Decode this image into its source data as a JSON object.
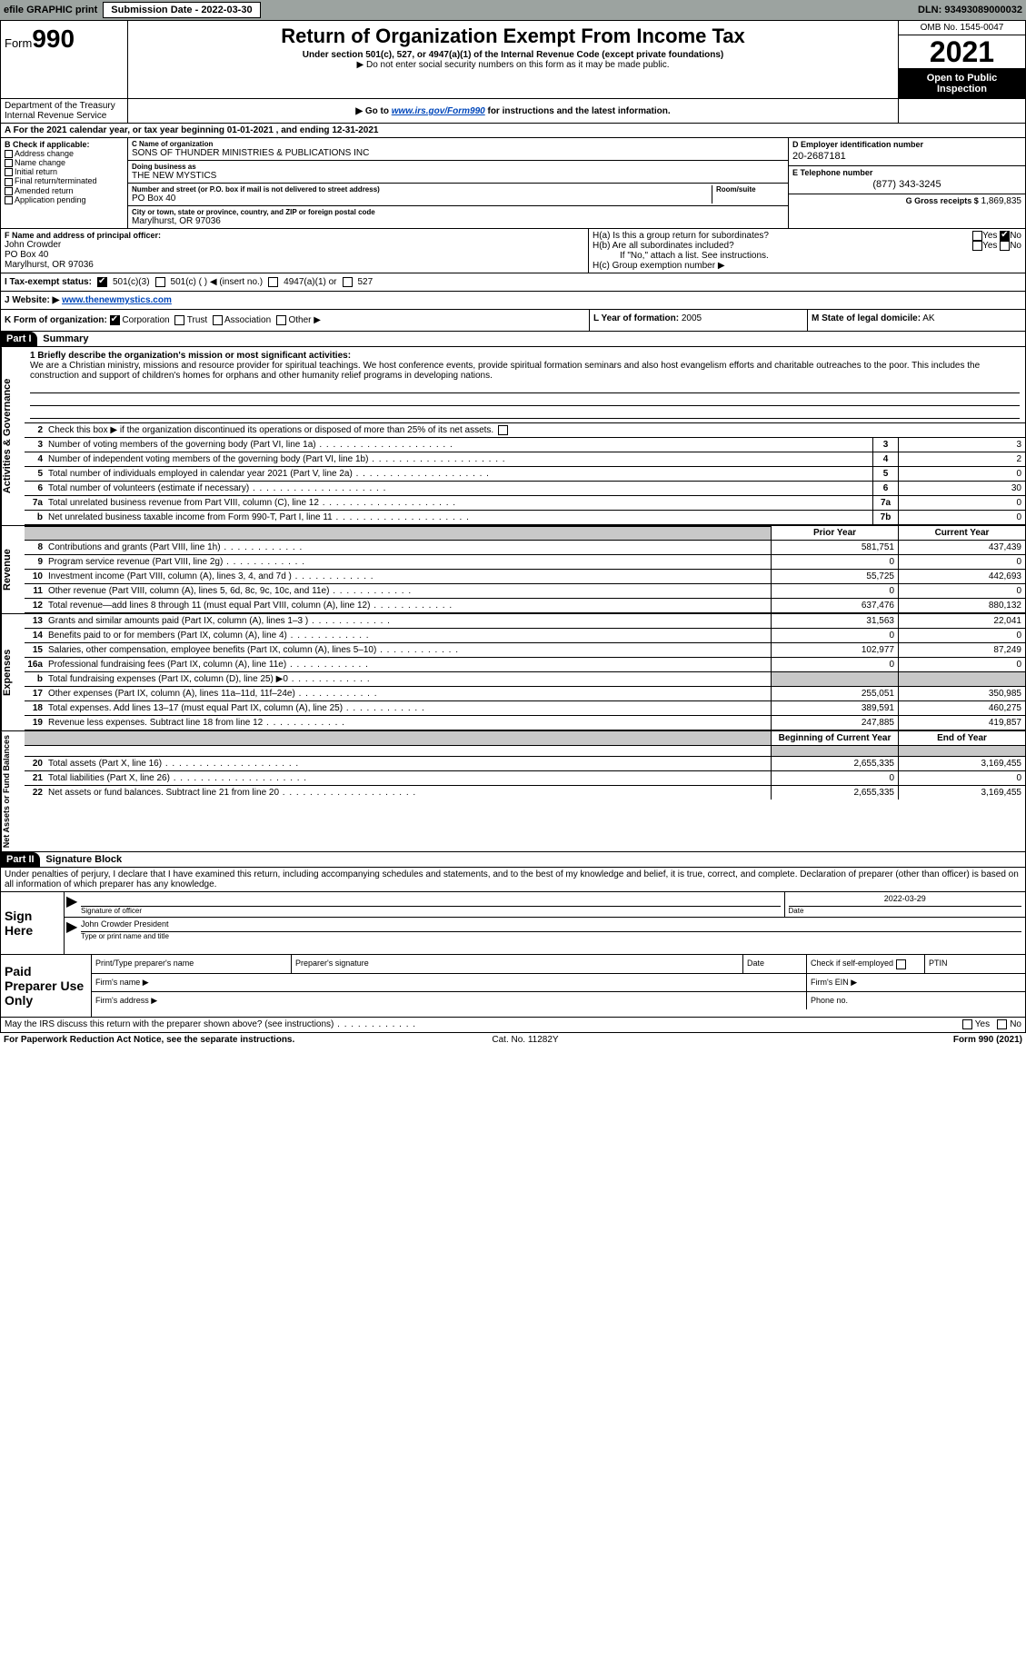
{
  "topbar": {
    "efile_label": "efile GRAPHIC print",
    "submission_label": "Submission Date - 2022-03-30",
    "dln_label": "DLN: 93493089000032"
  },
  "header": {
    "form_prefix": "Form",
    "form_number": "990",
    "title": "Return of Organization Exempt From Income Tax",
    "subtitle": "Under section 501(c), 527, or 4947(a)(1) of the Internal Revenue Code (except private foundations)",
    "note1": "▶ Do not enter social security numbers on this form as it may be made public.",
    "note2_pre": "▶ Go to ",
    "note2_link": "www.irs.gov/Form990",
    "note2_post": " for instructions and the latest information.",
    "omb": "OMB No. 1545-0047",
    "year": "2021",
    "open": "Open to Public Inspection",
    "dept": "Department of the Treasury Internal Revenue Service"
  },
  "A": {
    "text": "A For the 2021 calendar year, or tax year beginning 01-01-2021    , and ending 12-31-2021"
  },
  "B": {
    "header": "B Check if applicable:",
    "items": [
      "Address change",
      "Name change",
      "Initial return",
      "Final return/terminated",
      "Amended return",
      "Application pending"
    ]
  },
  "C": {
    "name_label": "C Name of organization",
    "name": "SONS OF THUNDER MINISTRIES & PUBLICATIONS INC",
    "dba_label": "Doing business as",
    "dba": "THE NEW MYSTICS",
    "street_label": "Number and street (or P.O. box if mail is not delivered to street address)",
    "room_label": "Room/suite",
    "street": "PO Box 40",
    "city_label": "City or town, state or province, country, and ZIP or foreign postal code",
    "city": "Marylhurst, OR  97036"
  },
  "D": {
    "label": "D Employer identification number",
    "value": "20-2687181"
  },
  "E": {
    "label": "E Telephone number",
    "value": "(877) 343-3245"
  },
  "G": {
    "label": "G Gross receipts $",
    "value": "1,869,835"
  },
  "F": {
    "label": "F Name and address of principal officer:",
    "name": "John Crowder",
    "street": "PO Box 40",
    "city": "Marylhurst, OR  97036"
  },
  "H": {
    "a": "H(a)  Is this a group return for subordinates?",
    "b": "H(b)  Are all subordinates included?",
    "b_note": "If \"No,\" attach a list. See instructions.",
    "c": "H(c)  Group exemption number ▶",
    "yes": "Yes",
    "no": "No"
  },
  "I": {
    "label": "I  Tax-exempt status:",
    "opt1": "501(c)(3)",
    "opt2": "501(c) (   ) ◀ (insert no.)",
    "opt3": "4947(a)(1) or",
    "opt4": "527"
  },
  "J": {
    "label": "J  Website: ▶ ",
    "value": "www.thenewmystics.com"
  },
  "K": {
    "label": "K Form of organization:",
    "opts": [
      "Corporation",
      "Trust",
      "Association",
      "Other ▶"
    ]
  },
  "L": {
    "label": "L Year of formation:",
    "value": "2005"
  },
  "M": {
    "label": "M State of legal domicile:",
    "value": "AK"
  },
  "partI": {
    "tab": "Part I",
    "title": "Summary",
    "side1": "Activities & Governance",
    "side2": "Revenue",
    "side3": "Expenses",
    "side4": "Net Assets or Fund Balances",
    "line1_label": "1  Briefly describe the organization's mission or most significant activities:",
    "line1_text": "We are a Christian ministry, missions and resource provider for spiritual teachings. We host conference events, provide spiritual formation seminars and also host evangelism efforts and charitable outreaches to the poor. This includes the construction and support of children's homes for orphans and other humanity relief programs in developing nations.",
    "line2": "Check this box ▶       if the organization discontinued its operations or disposed of more than 25% of its net assets.",
    "lines_gov": [
      {
        "n": "3",
        "t": "Number of voting members of the governing body (Part VI, line 1a)",
        "box": "3",
        "v": "3"
      },
      {
        "n": "4",
        "t": "Number of independent voting members of the governing body (Part VI, line 1b)",
        "box": "4",
        "v": "2"
      },
      {
        "n": "5",
        "t": "Total number of individuals employed in calendar year 2021 (Part V, line 2a)",
        "box": "5",
        "v": "0"
      },
      {
        "n": "6",
        "t": "Total number of volunteers (estimate if necessary)",
        "box": "6",
        "v": "30"
      },
      {
        "n": "7a",
        "t": "Total unrelated business revenue from Part VIII, column (C), line 12",
        "box": "7a",
        "v": "0"
      },
      {
        "n": "b",
        "t": "Net unrelated business taxable income from Form 990-T, Part I, line 11",
        "box": "7b",
        "v": "0"
      }
    ],
    "col_prior": "Prior Year",
    "col_current": "Current Year",
    "col_begin": "Beginning of Current Year",
    "col_end": "End of Year",
    "revenue": [
      {
        "n": "8",
        "t": "Contributions and grants (Part VIII, line 1h)",
        "p": "581,751",
        "c": "437,439"
      },
      {
        "n": "9",
        "t": "Program service revenue (Part VIII, line 2g)",
        "p": "0",
        "c": "0"
      },
      {
        "n": "10",
        "t": "Investment income (Part VIII, column (A), lines 3, 4, and 7d )",
        "p": "55,725",
        "c": "442,693"
      },
      {
        "n": "11",
        "t": "Other revenue (Part VIII, column (A), lines 5, 6d, 8c, 9c, 10c, and 11e)",
        "p": "0",
        "c": "0"
      },
      {
        "n": "12",
        "t": "Total revenue—add lines 8 through 11 (must equal Part VIII, column (A), line 12)",
        "p": "637,476",
        "c": "880,132"
      }
    ],
    "expenses": [
      {
        "n": "13",
        "t": "Grants and similar amounts paid (Part IX, column (A), lines 1–3 )",
        "p": "31,563",
        "c": "22,041"
      },
      {
        "n": "14",
        "t": "Benefits paid to or for members (Part IX, column (A), line 4)",
        "p": "0",
        "c": "0"
      },
      {
        "n": "15",
        "t": "Salaries, other compensation, employee benefits (Part IX, column (A), lines 5–10)",
        "p": "102,977",
        "c": "87,249"
      },
      {
        "n": "16a",
        "t": "Professional fundraising fees (Part IX, column (A), line 11e)",
        "p": "0",
        "c": "0"
      },
      {
        "n": "b",
        "t": "Total fundraising expenses (Part IX, column (D), line 25) ▶0",
        "p": "",
        "c": "",
        "grey": true
      },
      {
        "n": "17",
        "t": "Other expenses (Part IX, column (A), lines 11a–11d, 11f–24e)",
        "p": "255,051",
        "c": "350,985"
      },
      {
        "n": "18",
        "t": "Total expenses. Add lines 13–17 (must equal Part IX, column (A), line 25)",
        "p": "389,591",
        "c": "460,275"
      },
      {
        "n": "19",
        "t": "Revenue less expenses. Subtract line 18 from line 12",
        "p": "247,885",
        "c": "419,857"
      }
    ],
    "netassets": [
      {
        "n": "20",
        "t": "Total assets (Part X, line 16)",
        "p": "2,655,335",
        "c": "3,169,455"
      },
      {
        "n": "21",
        "t": "Total liabilities (Part X, line 26)",
        "p": "0",
        "c": "0"
      },
      {
        "n": "22",
        "t": "Net assets or fund balances. Subtract line 21 from line 20",
        "p": "2,655,335",
        "c": "3,169,455"
      }
    ]
  },
  "partII": {
    "tab": "Part II",
    "title": "Signature Block",
    "intro": "Under penalties of perjury, I declare that I have examined this return, including accompanying schedules and statements, and to the best of my knowledge and belief, it is true, correct, and complete. Declaration of preparer (other than officer) is based on all information of which preparer has any knowledge.",
    "sign_here": "Sign Here",
    "sig_officer": "Signature of officer",
    "sig_date": "Date",
    "sig_date_val": "2022-03-29",
    "name_title": "John Crowder  President",
    "name_title_label": "Type or print name and title",
    "paid_prep": "Paid Preparer Use Only",
    "pt_name": "Print/Type preparer's name",
    "pt_sig": "Preparer's signature",
    "pt_date": "Date",
    "pt_check": "Check        if self-employed",
    "pt_ptin": "PTIN",
    "firm_name": "Firm's name   ▶",
    "firm_ein": "Firm's EIN ▶",
    "firm_addr": "Firm's address ▶",
    "firm_phone": "Phone no.",
    "may_irs": "May the IRS discuss this return with the preparer shown above? (see instructions)",
    "yes": "Yes",
    "no": "No"
  },
  "footer": {
    "left": "For Paperwork Reduction Act Notice, see the separate instructions.",
    "mid": "Cat. No. 11282Y",
    "right": "Form 990 (2021)"
  }
}
